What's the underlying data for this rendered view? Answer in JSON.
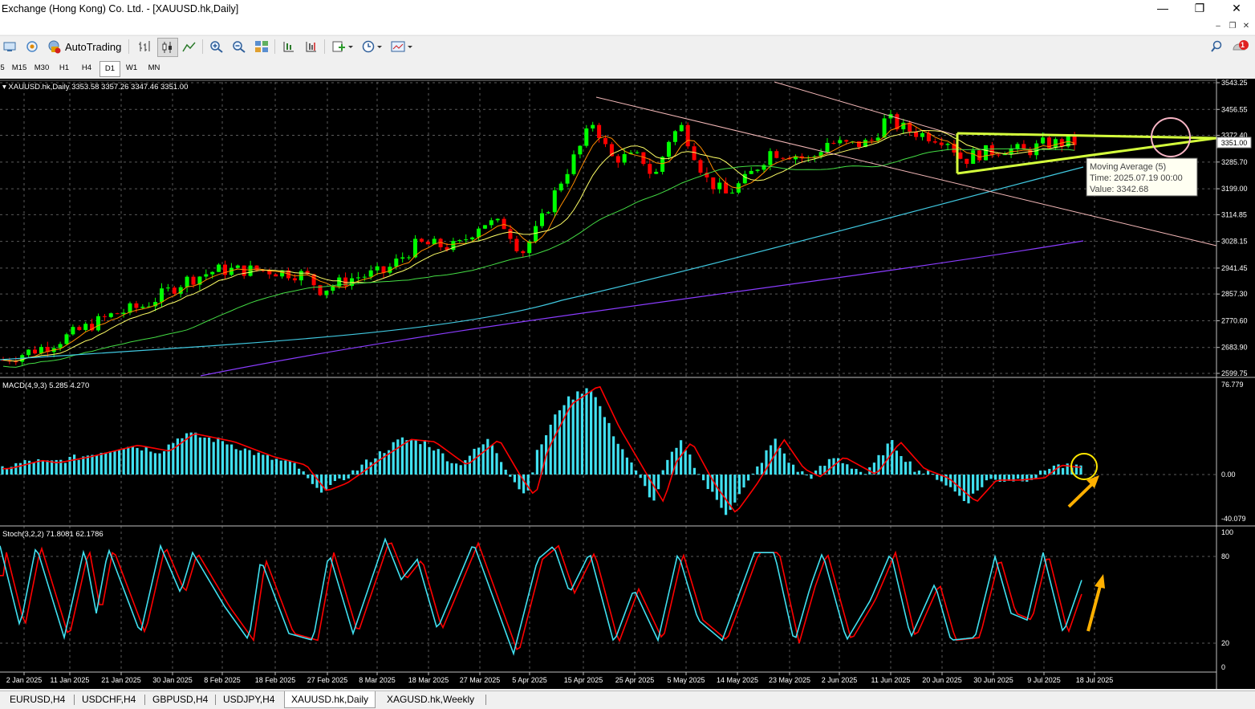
{
  "window": {
    "title": "Exchange (Hong Kong) Co. Ltd. - [XAUUSD.hk,Daily]",
    "minimize": "—",
    "maximize": "❐",
    "close": "✕"
  },
  "menubar": {
    "mdi_minimize": "–",
    "mdi_restore": "❐",
    "mdi_close": "✕",
    "notification_count": "1"
  },
  "toolbar": {
    "autotrading_label": "AutoTrading"
  },
  "timeframes": [
    {
      "label": "5",
      "active": false
    },
    {
      "label": "M15",
      "active": false
    },
    {
      "label": "M30",
      "active": false
    },
    {
      "label": "H1",
      "active": false
    },
    {
      "label": "H4",
      "active": false
    },
    {
      "label": "D1",
      "active": true
    },
    {
      "label": "W1",
      "active": false
    },
    {
      "label": "MN",
      "active": false
    }
  ],
  "chart": {
    "header": "XAUUSD.hk,Daily  3353.58 3357.26 3347.46 3351.00",
    "current_price": "3351.00",
    "price_ticks": [
      "3543.25",
      "3456.55",
      "3372.40",
      "3285.70",
      "3199.00",
      "3114.85",
      "3028.15",
      "2941.45",
      "2857.30",
      "2770.60",
      "2683.90",
      "2599.75"
    ],
    "date_ticks": [
      "2 Jan 2025",
      "11 Jan 2025",
      "21 Jan 2025",
      "30 Jan 2025",
      "8 Feb 2025",
      "18 Feb 2025",
      "27 Feb 2025",
      "8 Mar 2025",
      "18 Mar 2025",
      "27 Mar 2025",
      "5 Apr 2025",
      "15 Apr 2025",
      "25 Apr 2025",
      "5 May 2025",
      "14 May 2025",
      "23 May 2025",
      "2 Jun 2025",
      "11 Jun 2025",
      "20 Jun 2025",
      "30 Jun 2025",
      "9 Jul 2025",
      "18 Jul 2025"
    ],
    "tooltip": {
      "line1": "Moving Average (5)",
      "line2": "Time: 2025.07.19 00:00",
      "line3": "Value: 3342.68"
    },
    "colors": {
      "bull": "#00ff00",
      "bear": "#ff0000",
      "ma_orange": "#ff8c00",
      "ma_yellow": "#ffff66",
      "ma_green": "#44dd44",
      "ma_cyan": "#40c8e0",
      "ma_purple": "#8a3cff",
      "channel": "#f4b8b8",
      "triangle": "#d4ff3c",
      "macd_hist": "#40e0f0",
      "macd_signal": "#ff0000",
      "stoch_main": "#40e0f0",
      "stoch_signal": "#ff0000"
    }
  },
  "macd": {
    "header": "MACD(4,9,3) 5.285 4.270",
    "ticks": [
      "76.779",
      "0.00",
      "-40.079"
    ]
  },
  "stoch": {
    "header": "Stoch(3,2,2) 71.8081 62.1786",
    "ticks": [
      "100",
      "80",
      "20",
      "0"
    ]
  },
  "tabs": [
    {
      "label": "EURUSD,H4",
      "active": false
    },
    {
      "label": "USDCHF,H4",
      "active": false
    },
    {
      "label": "GBPUSD,H4",
      "active": false
    },
    {
      "label": "USDJPY,H4",
      "active": false
    },
    {
      "label": "XAUUSD.hk,Daily",
      "active": true
    },
    {
      "label": "XAGUSD.hk,Weekly",
      "active": false
    }
  ]
}
